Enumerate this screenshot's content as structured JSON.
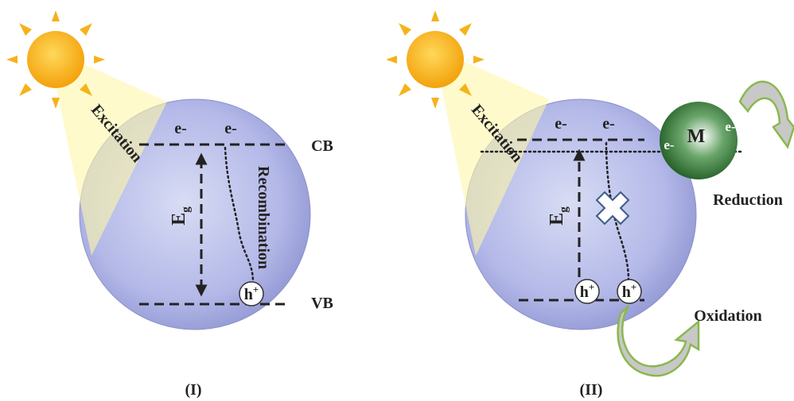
{
  "panel_1": {
    "excitation": "Excitation",
    "electrons": [
      "e-",
      "e-"
    ],
    "cb": "CB",
    "vb": "VB",
    "gap": {
      "main": "E",
      "sub": "g"
    },
    "recombination": "Recombination",
    "hole": {
      "main": "h",
      "sup": "+"
    },
    "caption": "(I)"
  },
  "panel_2": {
    "excitation": "Excitation",
    "electrons": [
      "e-",
      "e-"
    ],
    "metal": "M",
    "metal_electrons": [
      "e-",
      "e-"
    ],
    "reduction": "Reduction",
    "gap": {
      "main": "E",
      "sub": "g"
    },
    "holes": [
      {
        "main": "h",
        "sup": "+"
      },
      {
        "main": "h",
        "sup": "+"
      }
    ],
    "oxidation": "Oxidation",
    "caption": "(II)"
  }
}
